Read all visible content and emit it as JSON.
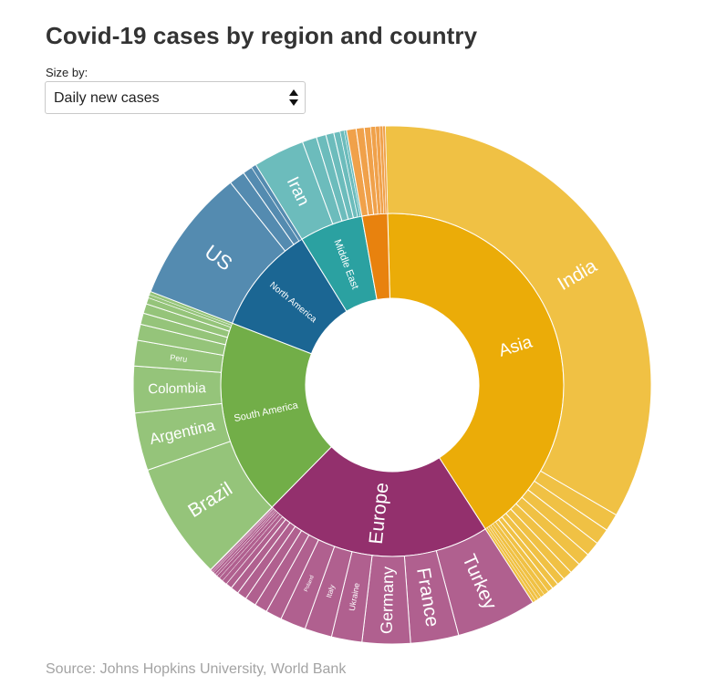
{
  "title": "Covid-19 cases by region and country",
  "controls": {
    "size_label": "Size by:",
    "size_selected": "Daily new cases"
  },
  "source": "Source: Johns Hopkins University, World Bank",
  "colors": {
    "asia": "#ebac08",
    "asia_outer": "#f0c144",
    "europe": "#93306d",
    "europe_outer": "#b0608f",
    "south_america": "#72ae48",
    "south_america_outer": "#95c47a",
    "north_america": "#1b6693",
    "north_america_outer": "#548bb0",
    "middle_east": "#2ba1a1",
    "middle_east_outer": "#6cbcbc",
    "africa": "#e8820e",
    "africa_outer": "#f0a14a"
  },
  "chart_data": {
    "type": "sunburst",
    "unit": "Daily new cases (relative share)",
    "regions": [
      {
        "name": "Asia",
        "label": "Asia",
        "value": 41.3,
        "color_key": "asia",
        "countries": [
          {
            "name": "India",
            "label": "India",
            "value": 33.8
          },
          {
            "name": "",
            "label": "",
            "value": 1.1
          },
          {
            "name": "",
            "label": "",
            "value": 1.0
          },
          {
            "name": "",
            "label": "",
            "value": 0.9
          },
          {
            "name": "",
            "label": "",
            "value": 0.8
          },
          {
            "name": "",
            "label": "",
            "value": 0.7
          },
          {
            "name": "",
            "label": "",
            "value": 0.6
          },
          {
            "name": "",
            "label": "",
            "value": 0.5
          },
          {
            "name": "",
            "label": "",
            "value": 0.4
          },
          {
            "name": "",
            "label": "",
            "value": 0.35
          },
          {
            "name": "",
            "label": "",
            "value": 0.3
          },
          {
            "name": "",
            "label": "",
            "value": 0.25
          },
          {
            "name": "",
            "label": "",
            "value": 0.2
          },
          {
            "name": "",
            "label": "",
            "value": 0.2
          },
          {
            "name": "",
            "label": "",
            "value": 0.2
          }
        ]
      },
      {
        "name": "Europe",
        "label": "Europe",
        "value": 21.5,
        "color_key": "europe",
        "countries": [
          {
            "name": "Turkey",
            "label": "Turkey",
            "value": 5.0
          },
          {
            "name": "France",
            "label": "France",
            "value": 3.0
          },
          {
            "name": "Germany",
            "label": "Germany",
            "value": 3.0
          },
          {
            "name": "Ukraine",
            "label": "Ukraine",
            "value": 1.9
          },
          {
            "name": "Italy",
            "label": "Italy",
            "value": 1.7
          },
          {
            "name": "Poland",
            "label": "Poland",
            "value": 1.6
          },
          {
            "name": "",
            "label": "",
            "value": 1.0
          },
          {
            "name": "",
            "label": "",
            "value": 0.8
          },
          {
            "name": "",
            "label": "",
            "value": 0.7
          },
          {
            "name": "",
            "label": "",
            "value": 0.6
          },
          {
            "name": "",
            "label": "",
            "value": 0.5
          },
          {
            "name": "",
            "label": "",
            "value": 0.4
          },
          {
            "name": "",
            "label": "",
            "value": 0.3
          },
          {
            "name": "",
            "label": "",
            "value": 0.25
          },
          {
            "name": "",
            "label": "",
            "value": 0.2
          },
          {
            "name": "",
            "label": "",
            "value": 0.15
          },
          {
            "name": "",
            "label": "",
            "value": 0.15
          },
          {
            "name": "",
            "label": "",
            "value": 0.1
          },
          {
            "name": "",
            "label": "",
            "value": 0.1
          },
          {
            "name": "",
            "label": "",
            "value": 0.05
          }
        ]
      },
      {
        "name": "South America",
        "label": "South America",
        "value": 18.5,
        "color_key": "south_america",
        "countries": [
          {
            "name": "Brazil",
            "label": "Brazil",
            "value": 7.3
          },
          {
            "name": "Argentina",
            "label": "Argentina",
            "value": 3.6
          },
          {
            "name": "Colombia",
            "label": "Colombia",
            "value": 2.9
          },
          {
            "name": "Peru",
            "label": "Peru",
            "value": 1.6
          },
          {
            "name": "",
            "label": "",
            "value": 1.0
          },
          {
            "name": "",
            "label": "",
            "value": 0.7
          },
          {
            "name": "",
            "label": "",
            "value": 0.6
          },
          {
            "name": "",
            "label": "",
            "value": 0.4
          },
          {
            "name": "",
            "label": "",
            "value": 0.2
          },
          {
            "name": "",
            "label": "",
            "value": 0.2
          }
        ]
      },
      {
        "name": "North America",
        "label": "North America",
        "value": 10.3,
        "color_key": "north_america",
        "countries": [
          {
            "name": "US",
            "label": "US",
            "value": 8.4
          },
          {
            "name": "",
            "label": "",
            "value": 1.0
          },
          {
            "name": "",
            "label": "",
            "value": 0.6
          },
          {
            "name": "",
            "label": "",
            "value": 0.3
          }
        ]
      },
      {
        "name": "Middle East",
        "label": "Middle East",
        "value": 6.0,
        "color_key": "middle_east",
        "countries": [
          {
            "name": "Iran",
            "label": "Iran",
            "value": 3.2
          },
          {
            "name": "",
            "label": "",
            "value": 0.9
          },
          {
            "name": "",
            "label": "",
            "value": 0.6
          },
          {
            "name": "",
            "label": "",
            "value": 0.5
          },
          {
            "name": "",
            "label": "",
            "value": 0.4
          },
          {
            "name": "",
            "label": "",
            "value": 0.25
          },
          {
            "name": "",
            "label": "",
            "value": 0.15
          }
        ]
      },
      {
        "name": "",
        "label": "",
        "value": 2.4,
        "color_key": "africa",
        "countries": [
          {
            "name": "",
            "label": "",
            "value": 0.6
          },
          {
            "name": "",
            "label": "",
            "value": 0.5
          },
          {
            "name": "",
            "label": "",
            "value": 0.4
          },
          {
            "name": "",
            "label": "",
            "value": 0.3
          },
          {
            "name": "",
            "label": "",
            "value": 0.25
          },
          {
            "name": "",
            "label": "",
            "value": 0.2
          },
          {
            "name": "",
            "label": "",
            "value": 0.15
          }
        ]
      }
    ]
  }
}
